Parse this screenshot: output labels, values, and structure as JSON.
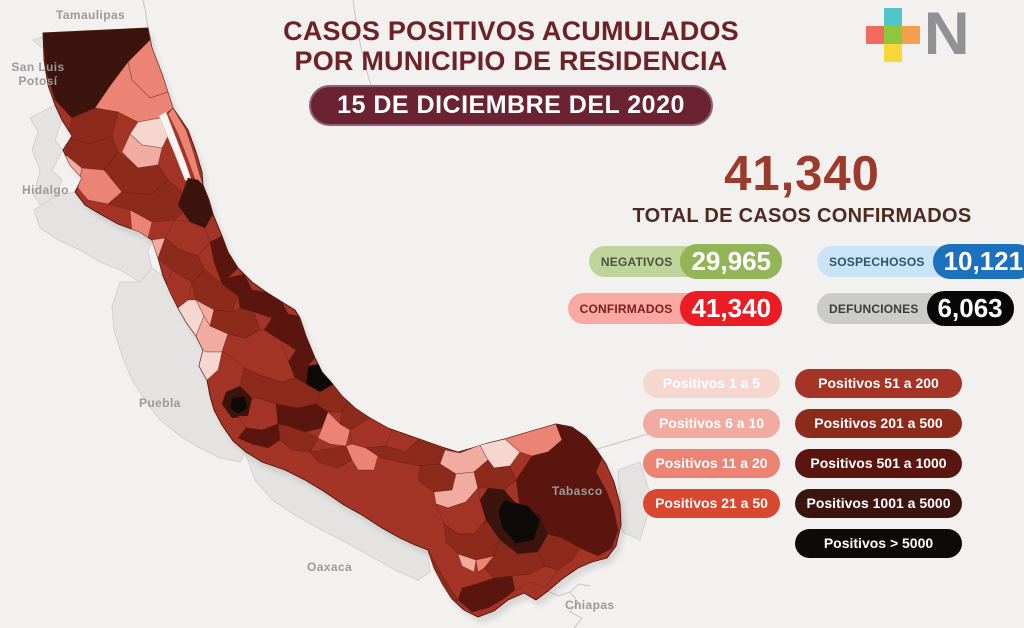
{
  "header": {
    "title_line1": "CASOS POSITIVOS ACUMULADOS",
    "title_line2": "POR MUNICIPIO DE RESIDENCIA",
    "date_banner": "15 DE DICIEMBRE DEL 2020"
  },
  "theme": {
    "background": "#F2F1F0",
    "title_color": "#6E2126",
    "date_pill_bg": "#6B2334",
    "total_number_color": "#9A3B2C",
    "total_label_color": "#4E2A21"
  },
  "logo": {
    "letter": "N",
    "letter_color": "#8F9194",
    "plus_colors": {
      "top": "#52C5CC",
      "left": "#F16A5D",
      "center": "#8DC63F",
      "right": "#F7A04B",
      "bottom": "#F8D838"
    }
  },
  "summary": {
    "total_value": "41,340",
    "total_label": "TOTAL DE CASOS CONFIRMADOS",
    "badges": [
      {
        "label": "NEGATIVOS",
        "value": "29,965",
        "label_bg": "#BED49B",
        "value_bg": "#93B558",
        "label_color": "#4C5142"
      },
      {
        "label": "SOSPECHOSOS",
        "value": "10,121",
        "label_bg": "#C9E4F6",
        "value_bg": "#1B71BD",
        "label_color": "#33536B"
      },
      {
        "label": "CONFIRMADOS",
        "value": "41,340",
        "label_bg": "#F9A8A3",
        "value_bg": "#EC1C24",
        "label_color": "#7D1D21"
      },
      {
        "label": "DEFUNCIONES",
        "value": "6,063",
        "label_bg": "#CBCBCA",
        "value_bg": "#070707",
        "label_color": "#3C3C3C"
      }
    ]
  },
  "legend": {
    "left": [
      {
        "label": "Positivos 1 a 5",
        "bg": "#F5D7D0"
      },
      {
        "label": "Positivos 6 a 10",
        "bg": "#F1ABA0"
      },
      {
        "label": "Positivos 11 a 20",
        "bg": "#EC8475"
      },
      {
        "label": "Positivos 21 a 50",
        "bg": "#D8472E"
      }
    ],
    "right": [
      {
        "label": "Positivos 51 a 200",
        "bg": "#A43425"
      },
      {
        "label": "Positivos 201 a 500",
        "bg": "#8C2A1B"
      },
      {
        "label": "Positivos 501 a 1000",
        "bg": "#5A150F"
      },
      {
        "label": "Positivos 1001 a 5000",
        "bg": "#3B140D"
      },
      {
        "label": "Positivos > 5000",
        "bg": "#0D0A08"
      }
    ]
  },
  "map": {
    "state_labels": [
      {
        "name": "Tamaulipas"
      },
      {
        "name": "San Luis\nPotosí"
      },
      {
        "name": "Hidalgo"
      },
      {
        "name": "Puebla"
      },
      {
        "name": "Oaxaca"
      },
      {
        "name": "Tabasco"
      },
      {
        "name": "Chiapas"
      }
    ]
  }
}
